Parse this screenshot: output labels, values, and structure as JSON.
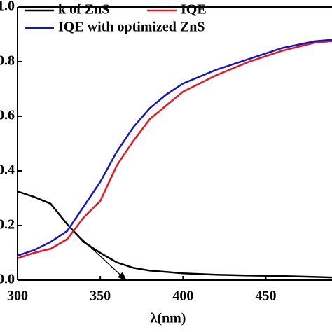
{
  "chart_data": {
    "type": "line",
    "xlabel": "λ(nm)",
    "x": [
      300,
      310,
      320,
      330,
      340,
      350,
      360,
      370,
      380,
      390,
      400,
      420,
      440,
      460,
      480,
      490
    ],
    "series": [
      {
        "name": "k of ZnS",
        "color": "#000000",
        "values": [
          0.325,
          0.305,
          0.28,
          0.205,
          0.14,
          0.1,
          0.065,
          0.045,
          0.035,
          0.03,
          0.025,
          0.02,
          0.017,
          0.015,
          0.012,
          0.01
        ]
      },
      {
        "name": "IQE",
        "color": "#e8141e",
        "values": [
          0.08,
          0.1,
          0.115,
          0.15,
          0.23,
          0.29,
          0.42,
          0.51,
          0.59,
          0.64,
          0.69,
          0.75,
          0.8,
          0.84,
          0.87,
          0.875
        ]
      },
      {
        "name": "IQE with optimized ZnS",
        "color": "#1414c8",
        "values": [
          0.09,
          0.11,
          0.14,
          0.18,
          0.27,
          0.36,
          0.47,
          0.56,
          0.63,
          0.68,
          0.72,
          0.77,
          0.81,
          0.85,
          0.875,
          0.88
        ]
      }
    ],
    "xlim": [
      300,
      490
    ],
    "xticks": [
      300,
      350,
      400,
      450
    ],
    "ylim": [
      0,
      1.0
    ],
    "yticks": [
      {
        "value": 0,
        "label": "0.0"
      },
      {
        "value": 0.2,
        "label": "0.2"
      },
      {
        "value": 0.4,
        "label": "0.4"
      },
      {
        "value": 0.6,
        "label": "0.6"
      },
      {
        "value": 0.8,
        "label": "0.8"
      },
      {
        "value": 1.0,
        "label": "1.0"
      }
    ],
    "grid": false
  }
}
